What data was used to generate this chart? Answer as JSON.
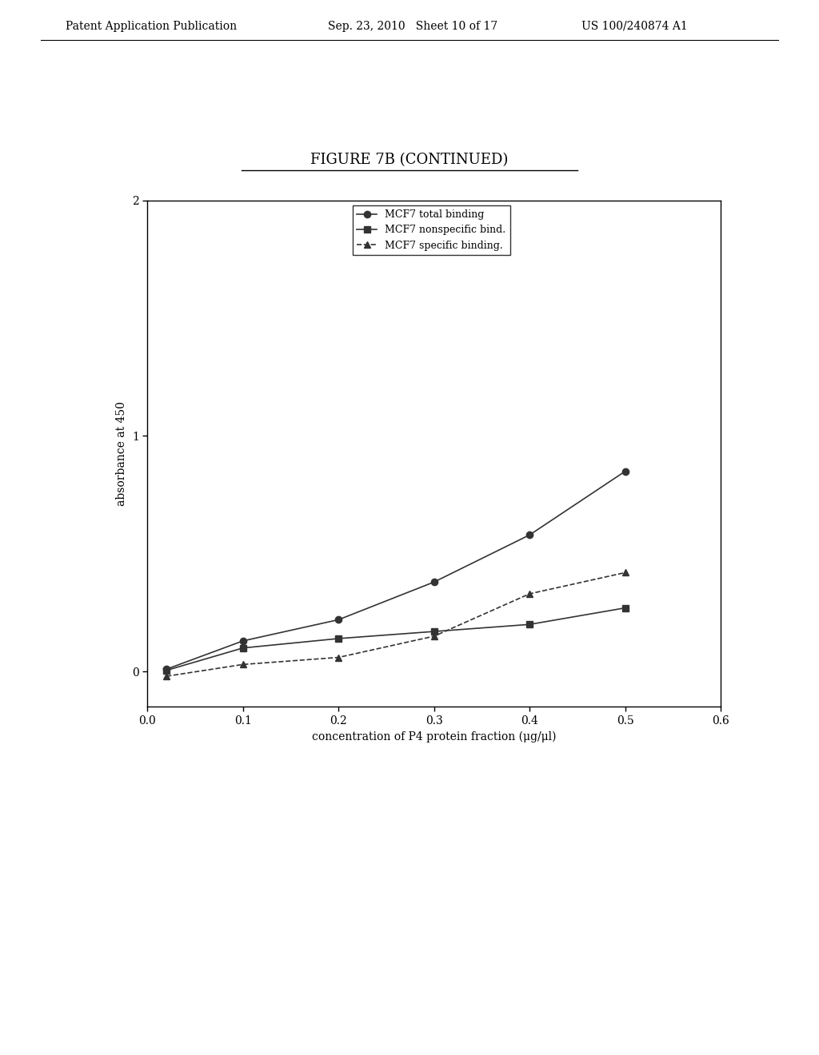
{
  "title": "FIGURE 7B (CONTINUED)",
  "xlabel": "concentration of P4 protein fraction (μg/μl)",
  "ylabel": "absorbance at 450",
  "xlim": [
    0.0,
    0.6
  ],
  "ylim": [
    -0.15,
    2.0
  ],
  "xticks": [
    0.0,
    0.1,
    0.2,
    0.3,
    0.4,
    0.5,
    0.6
  ],
  "yticks": [
    0,
    1,
    2
  ],
  "total_binding_x": [
    0.02,
    0.1,
    0.2,
    0.3,
    0.4,
    0.5
  ],
  "total_binding_y": [
    0.01,
    0.13,
    0.22,
    0.38,
    0.58,
    0.85
  ],
  "nonspecific_x": [
    0.02,
    0.1,
    0.2,
    0.3,
    0.4,
    0.5
  ],
  "nonspecific_y": [
    0.005,
    0.1,
    0.14,
    0.17,
    0.2,
    0.27
  ],
  "specific_x": [
    0.02,
    0.1,
    0.2,
    0.3,
    0.4,
    0.5
  ],
  "specific_y": [
    -0.02,
    0.03,
    0.06,
    0.15,
    0.33,
    0.42
  ],
  "legend_labels": [
    "MCF7 total binding",
    "MCF7 nonspecific bind.",
    "MCF7 specific binding."
  ],
  "line_color": "#333333",
  "background_color": "#ffffff",
  "header_left": "Patent Application Publication",
  "header_mid": "Sep. 23, 2010   Sheet 10 of 17",
  "header_right": "US 100/240874 A1"
}
